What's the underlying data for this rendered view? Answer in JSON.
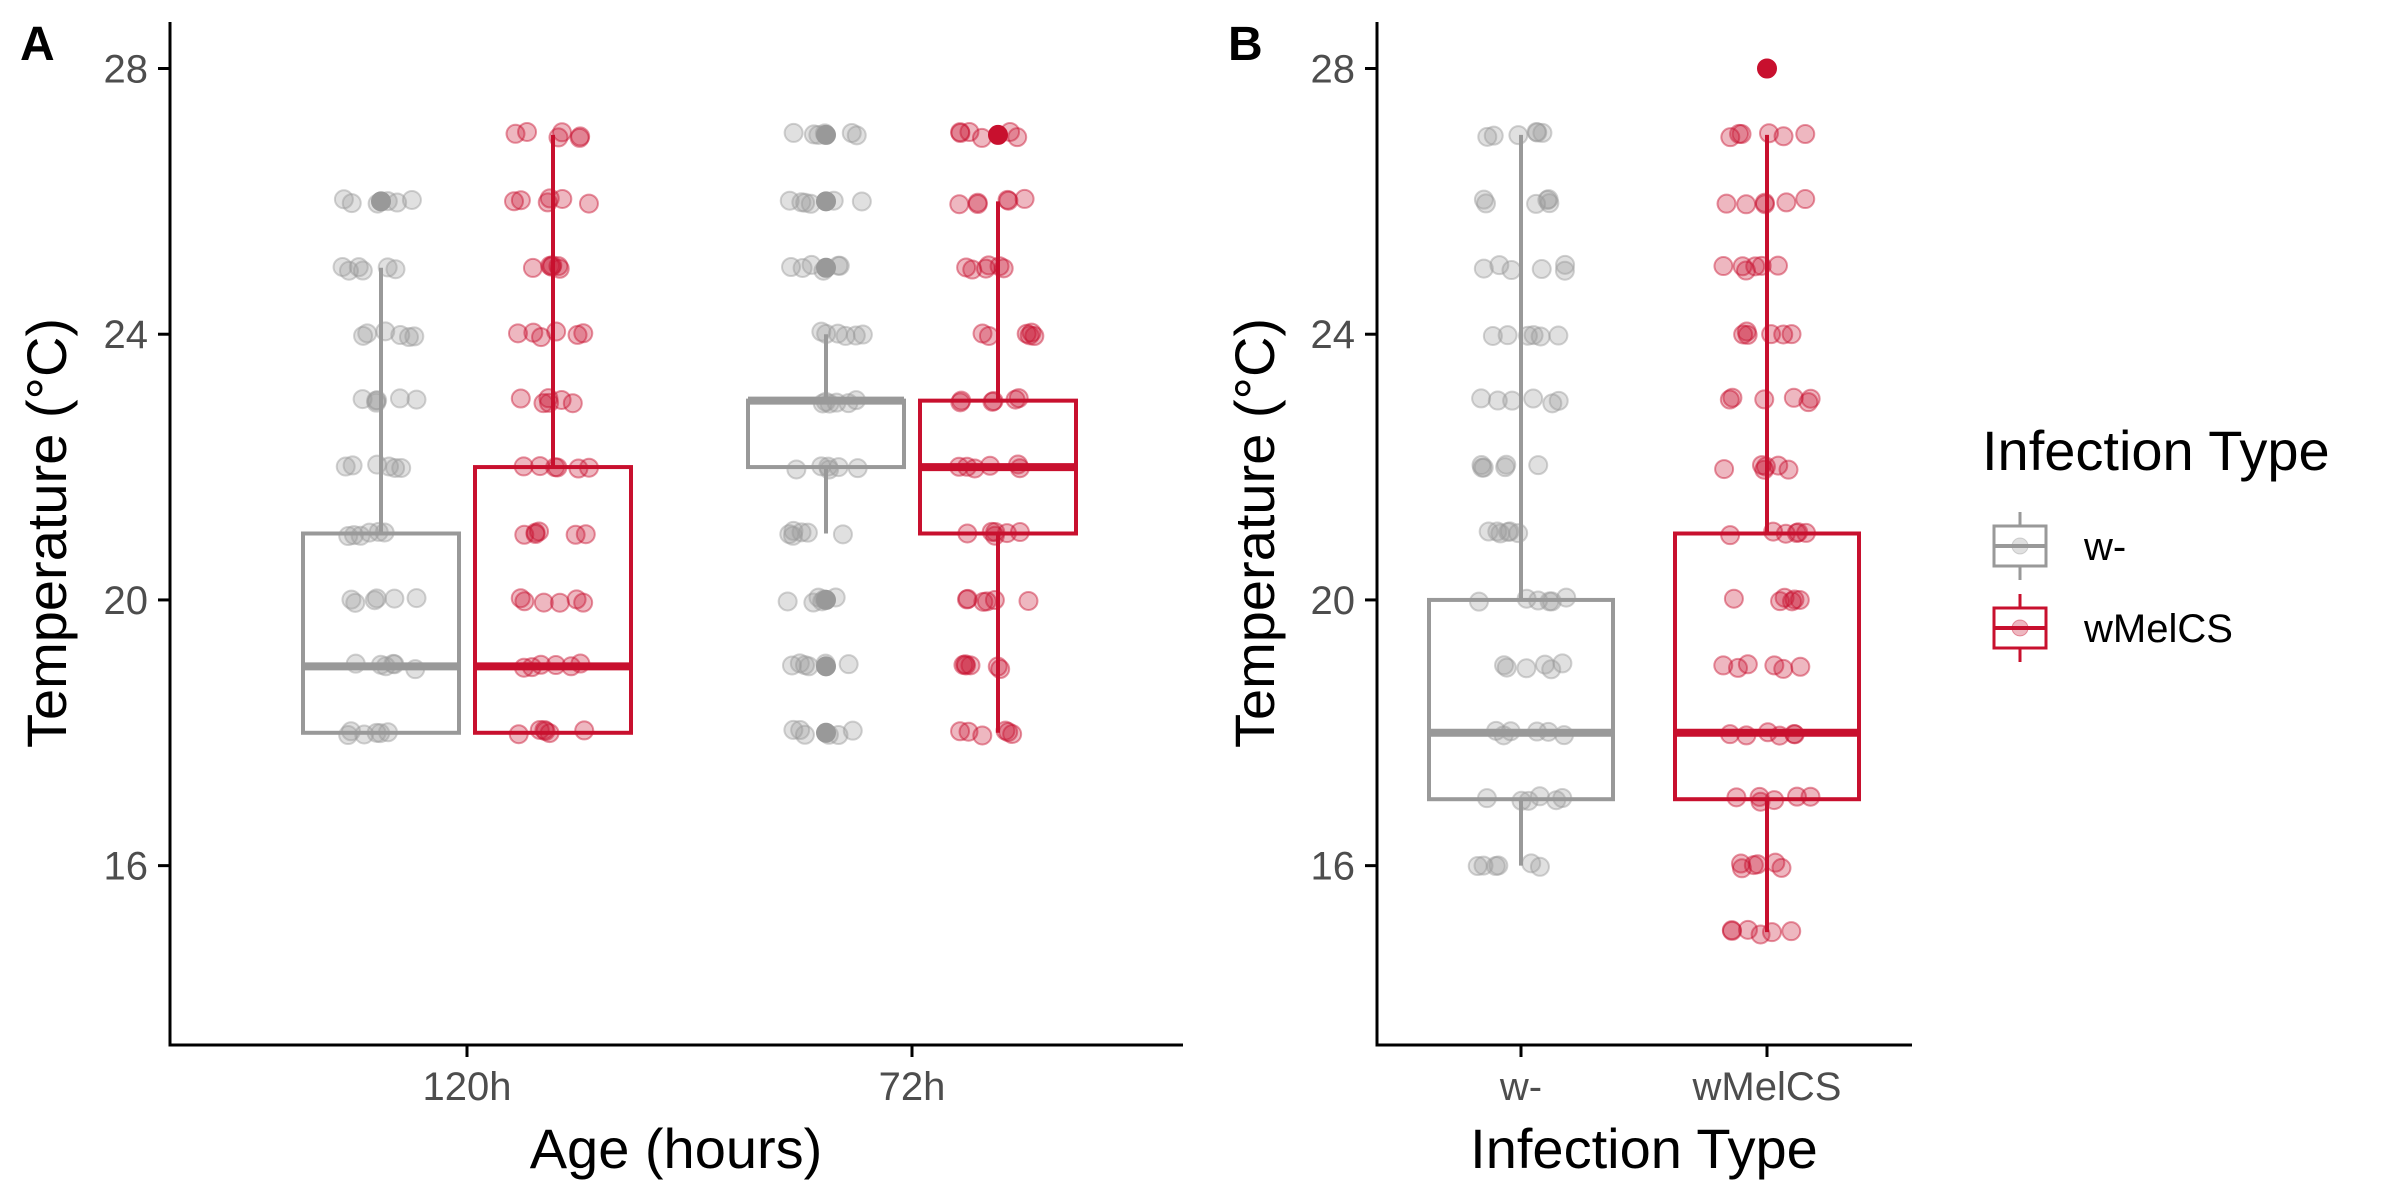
{
  "colors": {
    "w-": "#999999",
    "wMelCS": "#C8102E",
    "axis": "#000000",
    "tick_text": "#4d4d4d"
  },
  "legend": {
    "title": "Infection Type",
    "placement": "right",
    "items": [
      {
        "label": "w-",
        "color": "#999999"
      },
      {
        "label": "wMelCS",
        "color": "#C8102E"
      }
    ]
  },
  "chart_data": [
    {
      "panel": "A",
      "type": "box",
      "xlabel": "Age (hours)",
      "ylabel": "Temperature (°C)",
      "ylim": [
        13.3,
        28.7
      ],
      "yticks": [
        16,
        20,
        24,
        28
      ],
      "grid": false,
      "categories": [
        "120h",
        "72h"
      ],
      "jitter_points": true,
      "point_alpha": 0.3,
      "series": [
        {
          "name": "w-",
          "color": "#999999",
          "boxes": [
            {
              "category": "120h",
              "whisker_low": 18,
              "q1": 18,
              "median": 19,
              "q3": 21,
              "whisker_high": 25,
              "outliers": [
                26
              ],
              "points": [
                18,
                19,
                20,
                21,
                22,
                23,
                24,
                25,
                26
              ]
            },
            {
              "category": "72h",
              "whisker_low": 21,
              "q1": 22,
              "median": 23,
              "q3": 23,
              "whisker_high": 24,
              "outliers": [
                18,
                19,
                20,
                25,
                26,
                27
              ],
              "points": [
                18,
                19,
                20,
                21,
                22,
                23,
                24,
                25,
                26,
                27
              ]
            }
          ]
        },
        {
          "name": "wMelCS",
          "color": "#C8102E",
          "boxes": [
            {
              "category": "120h",
              "whisker_low": 18,
              "q1": 18,
              "median": 19,
              "q3": 22,
              "whisker_high": 27,
              "outliers": [],
              "points": [
                18,
                19,
                20,
                21,
                22,
                23,
                24,
                25,
                26,
                27
              ]
            },
            {
              "category": "72h",
              "whisker_low": 18,
              "q1": 21,
              "median": 22,
              "q3": 23,
              "whisker_high": 26,
              "outliers": [
                27
              ],
              "points": [
                18,
                19,
                20,
                21,
                22,
                23,
                24,
                25,
                26,
                27
              ]
            }
          ]
        }
      ]
    },
    {
      "panel": "B",
      "type": "box",
      "xlabel": "Infection Type",
      "ylabel": "Temperature (°C)",
      "ylim": [
        13.3,
        28.7
      ],
      "yticks": [
        16,
        20,
        24,
        28
      ],
      "grid": false,
      "categories": [
        "w-",
        "wMelCS"
      ],
      "jitter_points": true,
      "point_alpha": 0.3,
      "series": [
        {
          "name": "w-",
          "color": "#999999",
          "boxes": [
            {
              "category": "w-",
              "whisker_low": 16,
              "q1": 17,
              "median": 18,
              "q3": 20,
              "whisker_high": 27,
              "outliers": [],
              "points": [
                16,
                17,
                18,
                19,
                20,
                21,
                22,
                23,
                24,
                25,
                26,
                27
              ]
            }
          ]
        },
        {
          "name": "wMelCS",
          "color": "#C8102E",
          "boxes": [
            {
              "category": "wMelCS",
              "whisker_low": 15,
              "q1": 17,
              "median": 18,
              "q3": 21,
              "whisker_high": 27,
              "outliers": [
                28
              ],
              "points": [
                15,
                16,
                17,
                18,
                19,
                20,
                21,
                22,
                23,
                24,
                25,
                26,
                27
              ]
            }
          ]
        }
      ]
    }
  ]
}
